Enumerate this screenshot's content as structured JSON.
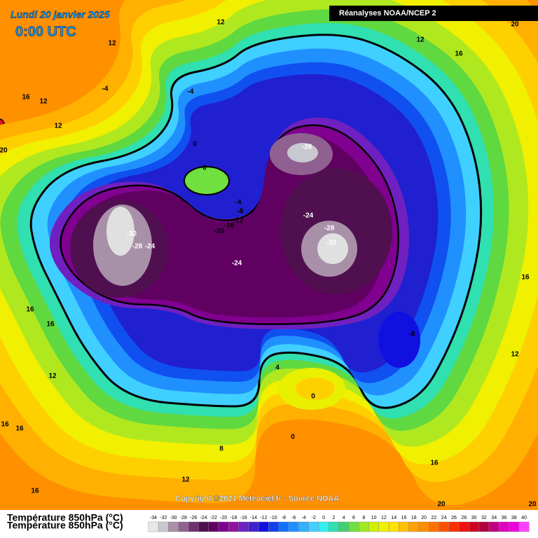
{
  "header": {
    "date": "Lundi 20 janvier 2025",
    "time": "0:00 UTC",
    "source": "Réanalyses NOAA/NCEP 2"
  },
  "footer": {
    "copyright": "Copyright ©2021 Meteociel.fr - Source NOAA",
    "variable": "Température 850hPa (°C)"
  },
  "legend": {
    "labels": [
      -34,
      -32,
      -30,
      -28,
      -26,
      -24,
      -22,
      -20,
      -18,
      -16,
      -14,
      -12,
      -10,
      -8,
      -6,
      -4,
      -2,
      0,
      2,
      4,
      6,
      8,
      10,
      12,
      14,
      16,
      18,
      20,
      22,
      24,
      26,
      28,
      30,
      32,
      34,
      36,
      38,
      40
    ],
    "colors": [
      "#e8e8e8",
      "#c8c8d0",
      "#a890a8",
      "#906090",
      "#703070",
      "#501050",
      "#600060",
      "#800090",
      "#9010a0",
      "#7020c0",
      "#4020d0",
      "#1010e0",
      "#1040f0",
      "#1070ff",
      "#2090ff",
      "#30b0ff",
      "#40d0ff",
      "#30f0f0",
      "#30e0b0",
      "#40d070",
      "#70e040",
      "#a0e820",
      "#d0f000",
      "#f0f000",
      "#ffe000",
      "#ffc000",
      "#ffa000",
      "#ff8c00",
      "#ff7000",
      "#ff5000",
      "#ff3000",
      "#f01010",
      "#d00020",
      "#b00040",
      "#c00080",
      "#e000c0",
      "#f000e0",
      "#ff40ff"
    ]
  },
  "contour_labels": [
    "12",
    "20",
    "12",
    "16",
    "12",
    "-4",
    "-4",
    "16",
    "12",
    "12",
    "0",
    "0",
    "-28",
    "20",
    "-4",
    "-8",
    "-12",
    "-16",
    "-20",
    "-24",
    "-28",
    "-32",
    "-32",
    "-28",
    "-24",
    "-24",
    "16",
    "16",
    "16",
    "-8",
    "4",
    "12",
    "12",
    "0",
    "16",
    "16",
    "0",
    "8",
    "16",
    "12",
    "16",
    "20",
    "20"
  ]
}
